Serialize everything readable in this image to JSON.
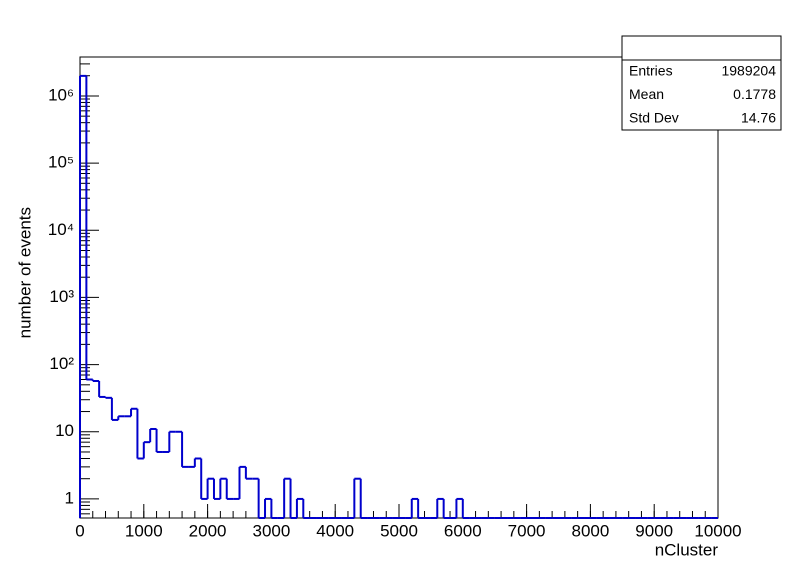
{
  "chart_data": {
    "type": "histogram",
    "x_label": "nCluster",
    "y_label": "number of events",
    "log_y": true,
    "color": "#0000cc",
    "bins": [
      0,
      100,
      200,
      300,
      400,
      500,
      600,
      700,
      800,
      900,
      1000,
      1100,
      1200,
      1300,
      1400,
      1500,
      1600,
      1700,
      1800,
      1900,
      2000,
      2100,
      2200,
      2300,
      2400,
      2500,
      2600,
      2700,
      2800,
      2900,
      3000,
      3100,
      3200,
      3300,
      3400,
      3500,
      3600,
      3700,
      3800,
      3900,
      4000,
      4100,
      4200,
      4300,
      4400,
      4500,
      4600,
      4700,
      4800,
      4900,
      5000,
      5100,
      5200,
      5300,
      5400,
      5500,
      5600,
      5700,
      5800,
      5900,
      6000,
      6100,
      6200,
      6300,
      6400,
      6500,
      6600,
      6700,
      6800,
      6900,
      7000,
      7100,
      7200,
      7300,
      7400,
      7500,
      7600,
      7700,
      7800,
      7900,
      8000,
      8100,
      8200,
      8300,
      8400,
      8500,
      8600,
      8700,
      8800,
      8900,
      9000,
      9100,
      9200,
      9300,
      9400,
      9500,
      9600,
      9700,
      9800,
      9900,
      10000
    ],
    "counts": [
      1989000,
      60,
      57,
      33,
      32,
      15,
      17,
      17,
      22,
      4,
      7,
      11,
      5,
      5,
      10,
      10,
      3,
      3,
      4,
      1,
      2,
      1,
      2,
      1,
      1,
      3,
      2,
      2,
      0,
      1,
      0,
      0,
      2,
      0,
      1,
      0,
      0,
      0,
      0,
      0,
      0,
      0,
      0,
      2,
      0,
      0,
      0,
      0,
      0,
      0,
      0,
      0,
      1,
      0,
      0,
      0,
      1,
      0,
      0,
      1,
      0,
      0,
      0,
      0,
      0,
      0,
      0,
      0,
      0,
      0,
      0,
      0,
      0,
      0,
      0,
      0,
      0,
      0,
      0,
      0,
      0,
      0,
      0,
      0,
      0,
      0,
      0,
      0,
      0,
      0,
      0,
      0,
      0,
      0,
      0,
      0,
      0,
      0,
      0,
      0
    ],
    "xlim": [
      0,
      10000
    ],
    "xticks": [
      0,
      1000,
      2000,
      3000,
      4000,
      5000,
      6000,
      7000,
      8000,
      9000,
      10000
    ],
    "ylim": [
      0.52,
      3800000
    ],
    "yticks": [
      1,
      10,
      {
        "value": 100,
        "label": "10²"
      },
      {
        "value": 1000,
        "label": "10³"
      },
      {
        "value": 10000,
        "label": "10⁴"
      },
      {
        "value": 100000,
        "label": "10⁵"
      },
      {
        "value": 1000000,
        "label": "10⁶"
      }
    ],
    "stats": {
      "rows": [
        [
          "Entries",
          "1989204"
        ],
        [
          "Mean",
          "0.1778"
        ],
        [
          "Std Dev",
          "14.76"
        ]
      ]
    }
  }
}
